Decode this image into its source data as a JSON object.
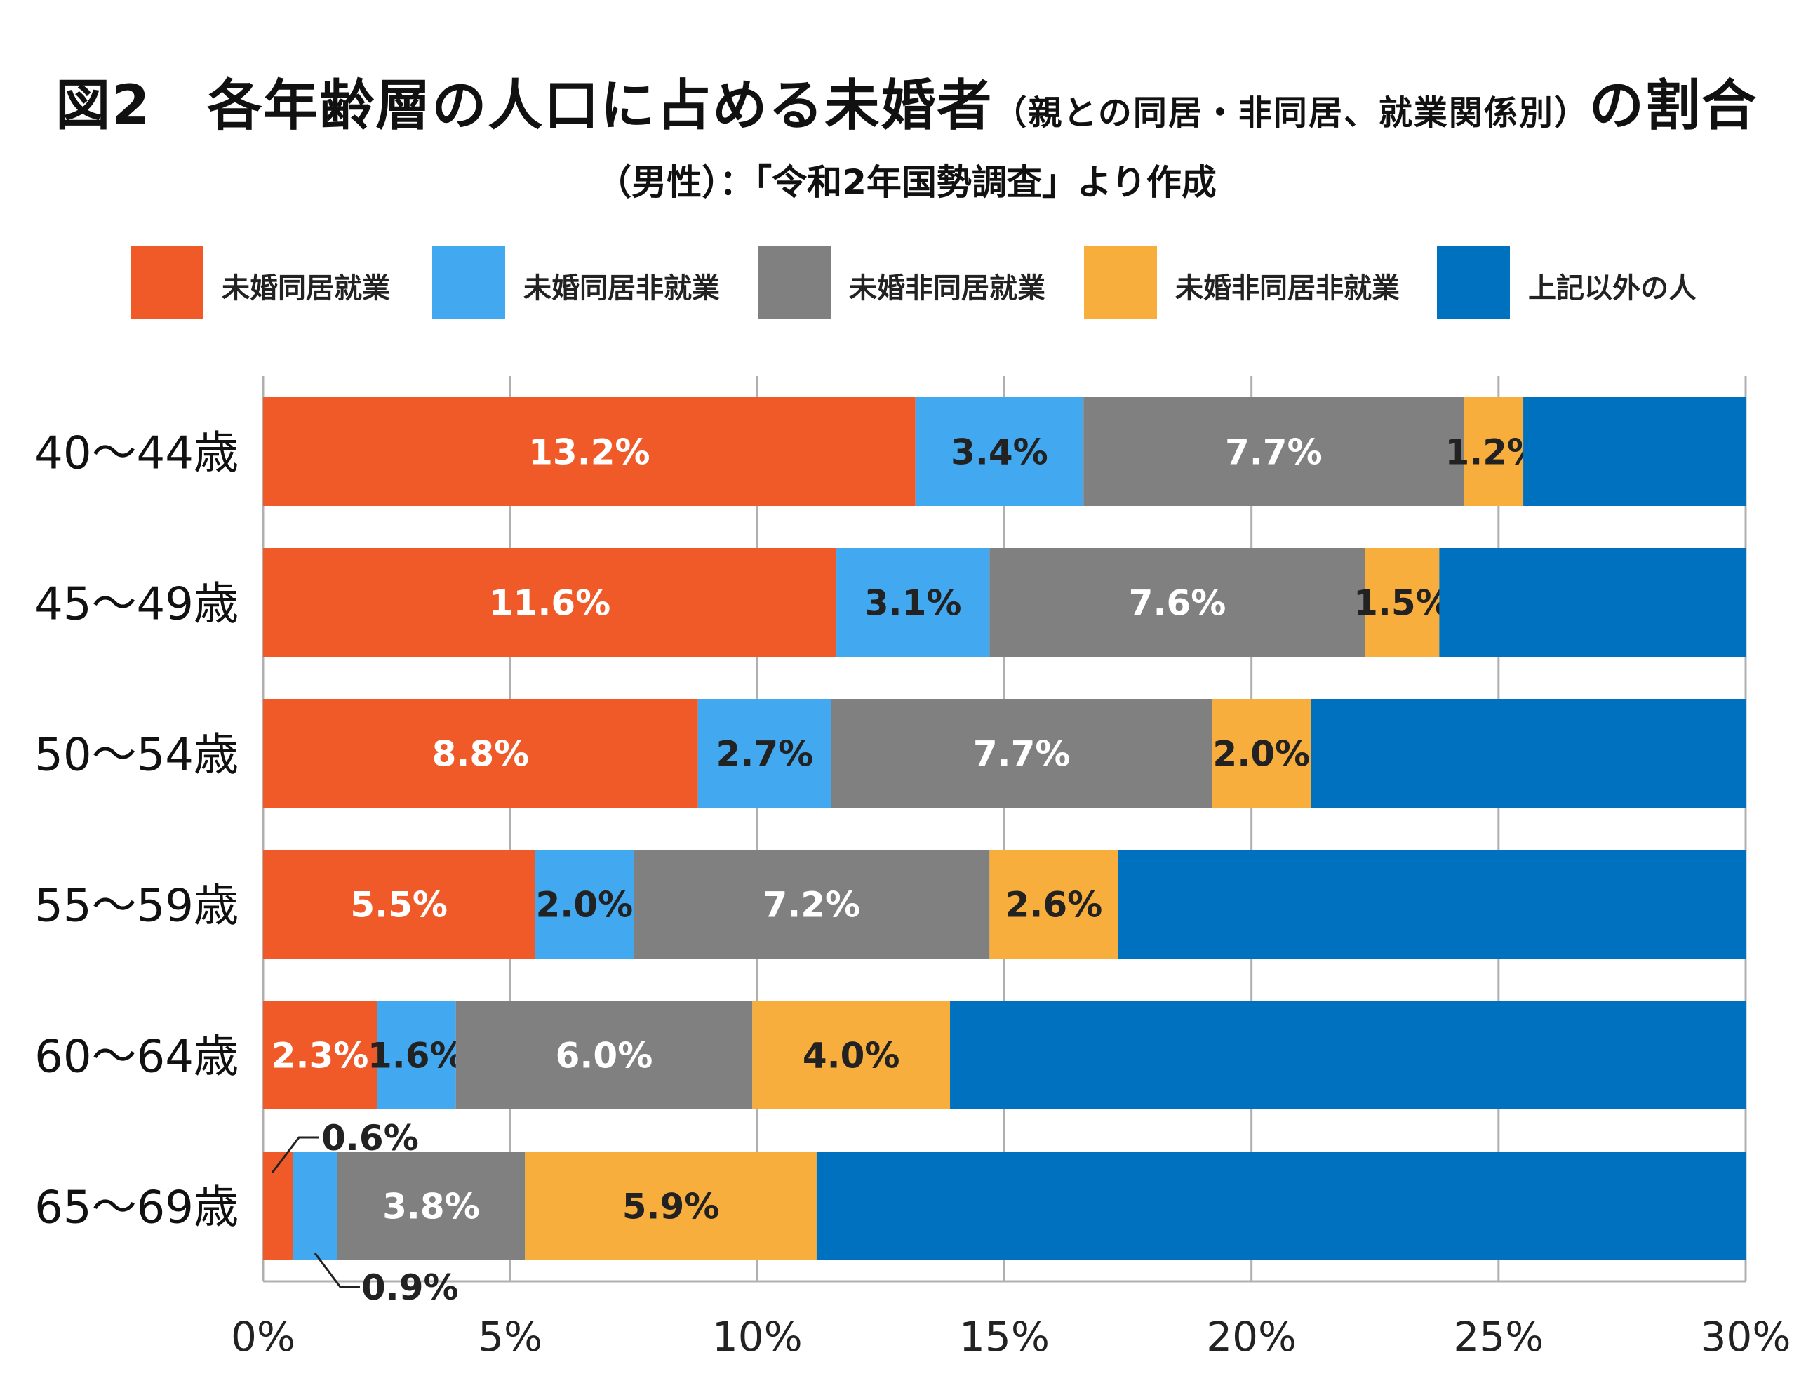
{
  "title": {
    "main": "図2　各年齢層の人口に占める未婚者",
    "paren": "（親との同居・非同居、就業関係別）",
    "tail": "の割合"
  },
  "subtitle": "（男性）：「令和2年国勢調査」より作成",
  "colors": {
    "series1": "#f05a28",
    "series2": "#42a8f0",
    "series3": "#808080",
    "series4": "#f8ae3c",
    "series5": "#0071bf",
    "grid": "#b0b0b0"
  },
  "chart_data": {
    "type": "bar",
    "orientation": "horizontal",
    "stacked": true,
    "categories": [
      "40〜44歳",
      "45〜49歳",
      "50〜54歳",
      "55〜59歳",
      "60〜64歳",
      "65〜69歳"
    ],
    "series": [
      {
        "name": "未婚同居就業",
        "values": [
          13.2,
          11.6,
          8.8,
          5.5,
          2.3,
          0.6
        ],
        "labels": [
          "13.2%",
          "11.6%",
          "8.8%",
          "5.5%",
          "2.3%",
          "0.6%"
        ]
      },
      {
        "name": "未婚同居非就業",
        "values": [
          3.4,
          3.1,
          2.7,
          2.0,
          1.6,
          0.9
        ],
        "labels": [
          "3.4%",
          "3.1%",
          "2.7%",
          "2.0%",
          "1.6%",
          "0.9%"
        ]
      },
      {
        "name": "未婚非同居就業",
        "values": [
          7.7,
          7.6,
          7.7,
          7.2,
          6.0,
          3.8
        ],
        "labels": [
          "7.7%",
          "7.6%",
          "7.7%",
          "7.2%",
          "6.0%",
          "3.8%"
        ]
      },
      {
        "name": "未婚非同居非就業",
        "values": [
          1.2,
          1.5,
          2.0,
          2.6,
          4.0,
          5.9
        ],
        "labels": [
          "1.2%",
          "1.5%",
          "2.0%",
          "2.6%",
          "4.0%",
          "5.9%"
        ]
      },
      {
        "name": "上記以外の人",
        "values": [
          4.5,
          6.2,
          8.8,
          12.7,
          16.1,
          18.8
        ],
        "labels": [
          "",
          "",
          "",
          "",
          "",
          ""
        ]
      }
    ],
    "xlim": [
      0,
      30
    ],
    "xticks": [
      "0%",
      "5%",
      "10%",
      "15%",
      "20%",
      "25%",
      "30%"
    ],
    "grid": true,
    "legend": "top"
  }
}
